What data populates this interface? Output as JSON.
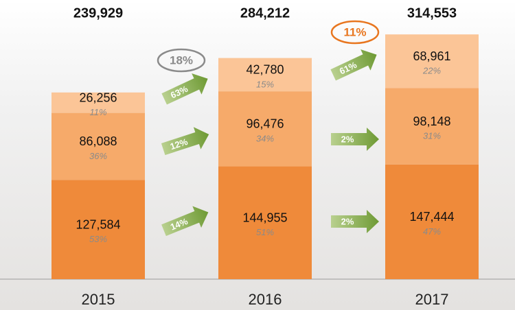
{
  "chart_data": {
    "type": "stacked-bar",
    "categories": [
      "2015",
      "2016",
      "2017"
    ],
    "ylim": [
      0,
      320000
    ],
    "totals": [
      239929,
      284212,
      314553
    ],
    "total_labels": [
      "239,929",
      "284,212",
      "314,553"
    ],
    "total_growth": [
      18,
      11
    ],
    "total_growth_labels": [
      "18%",
      "11%"
    ],
    "series": [
      {
        "color": "#ef8a3a",
        "values": [
          127584,
          144955,
          147444
        ],
        "value_labels": [
          "127,584",
          "144,955",
          "147,444"
        ],
        "shares": [
          53,
          51,
          47
        ],
        "share_labels": [
          "53%",
          "51%",
          "47%"
        ],
        "growth": [
          14,
          2
        ],
        "growth_labels": [
          "14%",
          "2%"
        ]
      },
      {
        "color": "#f6aa6a",
        "values": [
          86088,
          96476,
          98148
        ],
        "value_labels": [
          "86,088",
          "96,476",
          "98,148"
        ],
        "shares": [
          36,
          34,
          31
        ],
        "share_labels": [
          "36%",
          "34%",
          "31%"
        ],
        "growth": [
          12,
          2
        ],
        "growth_labels": [
          "12%",
          "2%"
        ]
      },
      {
        "color": "#fbc597",
        "values": [
          26256,
          42780,
          68961
        ],
        "value_labels": [
          "26,256",
          "42,780",
          "68,961"
        ],
        "shares": [
          11,
          15,
          22
        ],
        "share_labels": [
          "11%",
          "15%",
          "22%"
        ],
        "growth": [
          63,
          61
        ],
        "growth_labels": [
          "63%",
          "61%"
        ]
      }
    ]
  }
}
